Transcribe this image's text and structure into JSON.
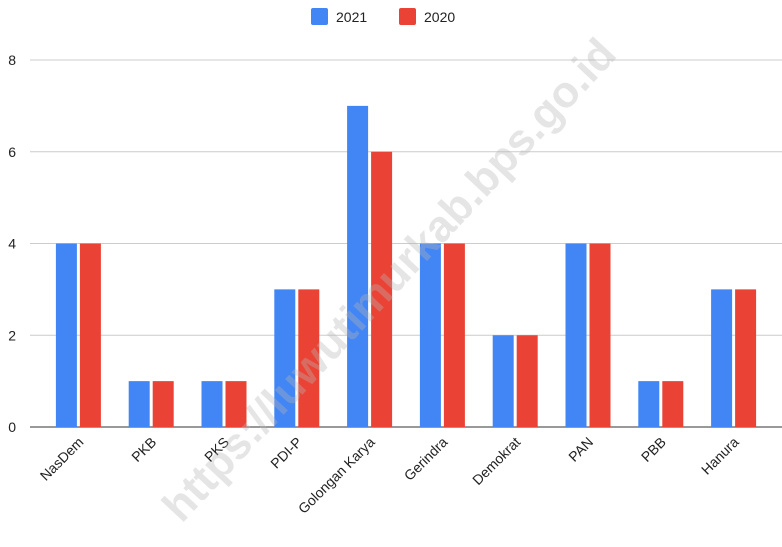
{
  "chart_data": {
    "type": "bar",
    "categories": [
      "NasDem",
      "PKB",
      "PKS",
      "PDI-P",
      "Golongan Karya",
      "Gerindra",
      "Demokrat",
      "PAN",
      "PBB",
      "Hanura"
    ],
    "series": [
      {
        "name": "2021",
        "color": "#4285f4",
        "values": [
          4,
          1,
          1,
          3,
          7,
          4,
          2,
          4,
          1,
          3
        ]
      },
      {
        "name": "2020",
        "color": "#ea4335",
        "values": [
          4,
          1,
          1,
          3,
          6,
          4,
          2,
          4,
          1,
          3
        ]
      }
    ],
    "yticks": [
      0,
      2,
      4,
      6,
      8
    ],
    "ylim": [
      0,
      8
    ],
    "grid": true,
    "legend_position": "top-center"
  },
  "watermark": "https://luwutimurkab.bps.go.id"
}
